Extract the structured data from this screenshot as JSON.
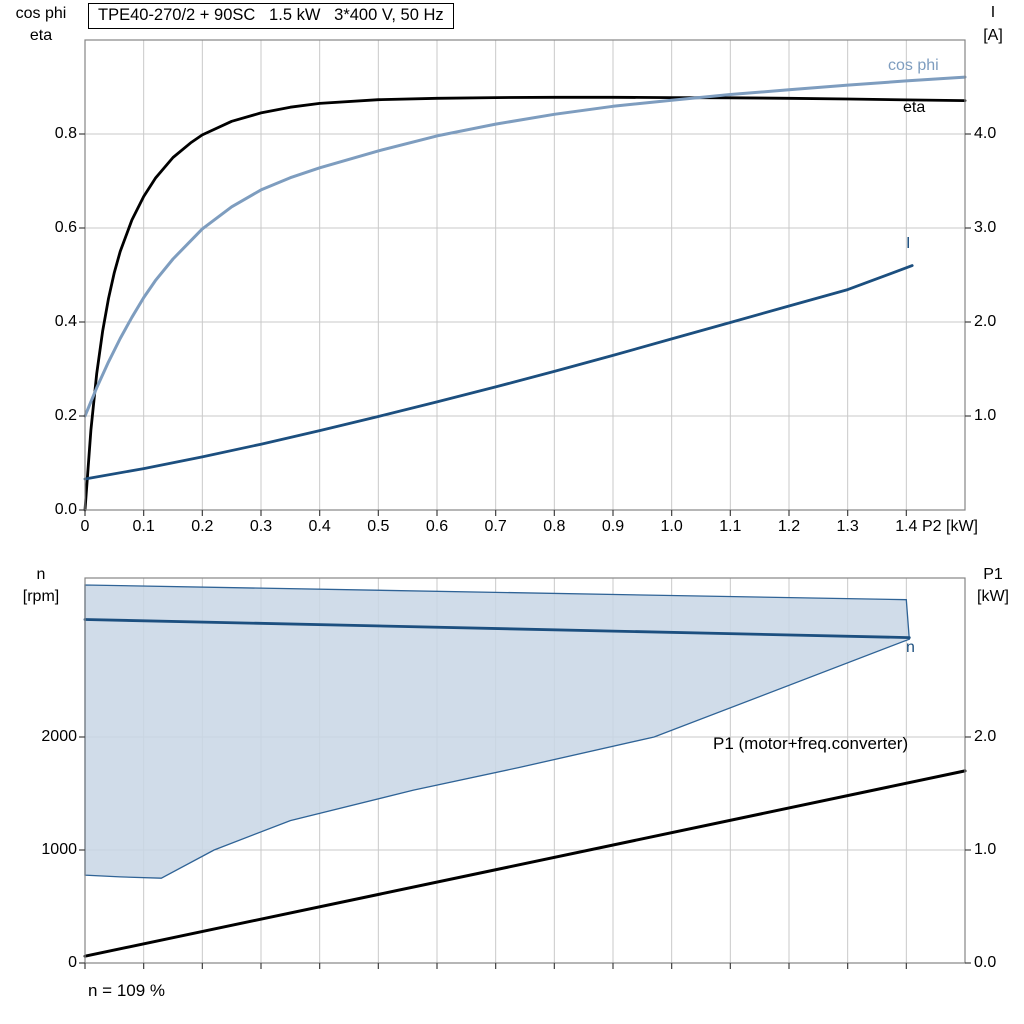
{
  "title_box": {
    "text": "TPE40-270/2 + 90SC   1.5 kW   3*400 V, 50 Hz"
  },
  "axis_labels": {
    "top_left_line1": "cos phi",
    "top_left_line2": "eta",
    "top_right_line1": "I",
    "top_right_line2": "[A]",
    "x_unit": "P2 [kW]",
    "bottom_left_line1": "n",
    "bottom_left_line2": "[rpm]",
    "bottom_right_line1": "P1",
    "bottom_right_line2": "[kW]"
  },
  "curve_labels": {
    "cos_phi": "cos phi",
    "eta": "eta",
    "current": "I",
    "speed": "n",
    "p1": "P1 (motor+freq.converter)"
  },
  "annotation": {
    "speed_percent": "n = 109 %"
  },
  "colors": {
    "eta": "#000000",
    "cos_phi": "#7e9dbf",
    "current": "#1c4f7f",
    "p1": "#000000",
    "region_fill": "#c8d6e5",
    "region_stroke": "#2f6396",
    "grid": "#c9c9c9",
    "frame": "#858585"
  },
  "chart_data": [
    {
      "id": "top",
      "type": "line",
      "title": "Motor curves: eta, cos phi and current I versus shaft power P2",
      "xlabel": "P2 [kW]",
      "xlim": [
        0,
        1.5
      ],
      "ylim_left": [
        0,
        1.0
      ],
      "ylim_right": [
        0,
        5.0
      ],
      "grid": true,
      "x_ticks": {
        "values": [
          0,
          0.1,
          0.2,
          0.3,
          0.4,
          0.5,
          0.6,
          0.7,
          0.8,
          0.9,
          1.0,
          1.1,
          1.2,
          1.3,
          1.4
        ],
        "labels": [
          "0",
          "0.1",
          "0.2",
          "0.3",
          "0.4",
          "0.5",
          "0.6",
          "0.7",
          "0.8",
          "0.9",
          "1.0",
          "1.1",
          "1.2",
          "1.3",
          "1.4"
        ]
      },
      "left_ticks": {
        "values": [
          0,
          0.2,
          0.4,
          0.6,
          0.8
        ],
        "labels": [
          "0.0",
          "0.2",
          "0.4",
          "0.6",
          "0.8"
        ]
      },
      "right_ticks": {
        "values": [
          1,
          2,
          3,
          4
        ],
        "labels": [
          "1.0",
          "2.0",
          "3.0",
          "4.0"
        ]
      },
      "series": [
        {
          "name": "eta",
          "axis": "left",
          "color": "eta",
          "width": 2.8,
          "points": [
            [
              0,
              0
            ],
            [
              0.01,
              0.17
            ],
            [
              0.02,
              0.29
            ],
            [
              0.03,
              0.38
            ],
            [
              0.04,
              0.45
            ],
            [
              0.05,
              0.505
            ],
            [
              0.06,
              0.55
            ],
            [
              0.08,
              0.617
            ],
            [
              0.1,
              0.667
            ],
            [
              0.12,
              0.706
            ],
            [
              0.15,
              0.75
            ],
            [
              0.18,
              0.781
            ],
            [
              0.2,
              0.798
            ],
            [
              0.25,
              0.827
            ],
            [
              0.3,
              0.845
            ],
            [
              0.35,
              0.857
            ],
            [
              0.4,
              0.865
            ],
            [
              0.5,
              0.873
            ],
            [
              0.6,
              0.876
            ],
            [
              0.7,
              0.8775
            ],
            [
              0.8,
              0.878
            ],
            [
              0.9,
              0.878
            ],
            [
              1.0,
              0.8775
            ],
            [
              1.1,
              0.877
            ],
            [
              1.2,
              0.876
            ],
            [
              1.3,
              0.8745
            ],
            [
              1.4,
              0.8725
            ],
            [
              1.5,
              0.871
            ]
          ]
        },
        {
          "name": "cos phi",
          "axis": "left",
          "color": "cos_phi",
          "width": 3,
          "points": [
            [
              0,
              0.2
            ],
            [
              0.02,
              0.26
            ],
            [
              0.04,
              0.315
            ],
            [
              0.06,
              0.365
            ],
            [
              0.08,
              0.41
            ],
            [
              0.1,
              0.452
            ],
            [
              0.12,
              0.488
            ],
            [
              0.15,
              0.534
            ],
            [
              0.2,
              0.598
            ],
            [
              0.25,
              0.645
            ],
            [
              0.3,
              0.681
            ],
            [
              0.35,
              0.707
            ],
            [
              0.4,
              0.728
            ],
            [
              0.5,
              0.764
            ],
            [
              0.6,
              0.796
            ],
            [
              0.7,
              0.821
            ],
            [
              0.8,
              0.842
            ],
            [
              0.9,
              0.859
            ],
            [
              1.0,
              0.872
            ],
            [
              1.1,
              0.884
            ],
            [
              1.2,
              0.894
            ],
            [
              1.3,
              0.904
            ],
            [
              1.4,
              0.913
            ],
            [
              1.5,
              0.921
            ]
          ]
        },
        {
          "name": "I",
          "axis": "right",
          "color": "current",
          "width": 2.8,
          "points": [
            [
              0,
              0.33
            ],
            [
              0.1,
              0.44
            ],
            [
              0.2,
              0.565
            ],
            [
              0.3,
              0.7
            ],
            [
              0.4,
              0.845
            ],
            [
              0.5,
              0.995
            ],
            [
              0.6,
              1.15
            ],
            [
              0.7,
              1.31
            ],
            [
              0.8,
              1.475
            ],
            [
              0.9,
              1.645
            ],
            [
              1.0,
              1.82
            ],
            [
              1.1,
              1.995
            ],
            [
              1.2,
              2.17
            ],
            [
              1.3,
              2.345
            ],
            [
              1.41,
              2.6
            ]
          ]
        }
      ]
    },
    {
      "id": "bottom",
      "type": "line",
      "title": "Speed n range and input power P1 versus shaft power P2",
      "xlabel": "P2 [kW]",
      "xlim": [
        0,
        1.5
      ],
      "ylim_left": [
        0,
        3407
      ],
      "ylim_right": [
        0,
        3.407
      ],
      "grid": true,
      "x_ticks": {
        "values": [
          0,
          0.1,
          0.2,
          0.3,
          0.4,
          0.5,
          0.6,
          0.7,
          0.8,
          0.9,
          1.0,
          1.1,
          1.2,
          1.3,
          1.4
        ],
        "labels": []
      },
      "left_ticks": {
        "values": [
          0,
          1000,
          2000
        ],
        "labels": [
          "0",
          "1000",
          "2000"
        ]
      },
      "right_ticks": {
        "values": [
          0,
          1,
          2
        ],
        "labels": [
          "0.0",
          "1.0",
          "2.0"
        ]
      },
      "region": {
        "name": "speed-control-range",
        "fill": "region_fill",
        "stroke": "region_stroke",
        "points": [
          [
            0,
            3345
          ],
          [
            1.4,
            3215
          ],
          [
            1.405,
            2865
          ],
          [
            0.97,
            2000
          ],
          [
            0.74,
            1730
          ],
          [
            0.56,
            1530
          ],
          [
            0.35,
            1260
          ],
          [
            0.22,
            1000
          ],
          [
            0.13,
            750
          ],
          [
            0.06,
            762
          ],
          [
            0,
            778
          ]
        ]
      },
      "series": [
        {
          "name": "n",
          "axis": "left",
          "color": "current",
          "width": 2.8,
          "points": [
            [
              0,
              3040
            ],
            [
              1.405,
              2880
            ]
          ]
        },
        {
          "name": "P1 motor freq converter",
          "axis": "right",
          "color": "p1",
          "width": 3,
          "points": [
            [
              0,
              0.06
            ],
            [
              1.5,
              1.7
            ]
          ]
        }
      ]
    }
  ]
}
